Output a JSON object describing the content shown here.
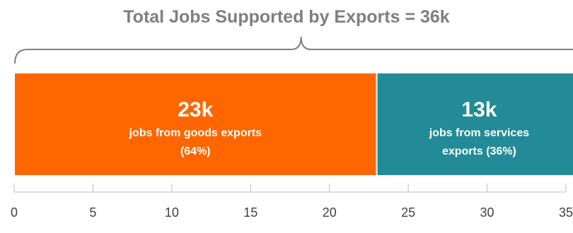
{
  "chart_data": {
    "type": "bar",
    "orientation": "horizontal",
    "stacked": true,
    "title": "Total Jobs Supported by Exports = 36k",
    "xlabel": "",
    "ylabel": "",
    "xlim": [
      0,
      35
    ],
    "xticks": [
      0,
      5,
      10,
      15,
      20,
      25,
      30,
      35
    ],
    "tick_labels": [
      "0",
      "5",
      "10",
      "15",
      "20",
      "25",
      "30",
      "35"
    ],
    "grid": false,
    "legend": "none",
    "brace": "spans total bar under title",
    "series": [
      {
        "value": 23,
        "color": "#ff6600",
        "label_value": "23k",
        "label_lines": [
          "jobs from goods exports",
          "(64%)"
        ]
      },
      {
        "value": 13,
        "color": "#228b97",
        "label_value": "13k",
        "label_lines": [
          "jobs from services",
          "exports (36%)"
        ]
      }
    ],
    "colors": {
      "title": "#7f7f7f",
      "axis": "#bfbfbf",
      "tick_text": "#404040",
      "brace": "#7f7f7f",
      "label_text": "#ffffff"
    }
  }
}
